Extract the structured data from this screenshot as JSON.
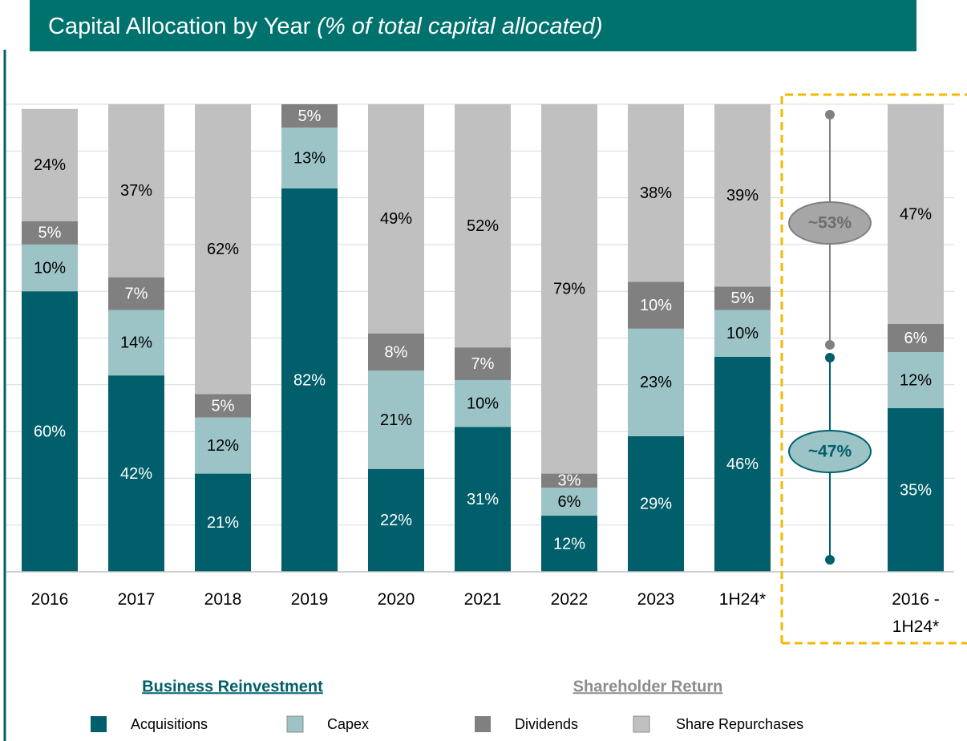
{
  "chart_data": {
    "type": "bar",
    "stacked": true,
    "title": "Capital Allocation by Year",
    "subtitle": "(% of total capital allocated)",
    "categories": [
      "2016",
      "2017",
      "2018",
      "2019",
      "2020",
      "2021",
      "2022",
      "2023",
      "1H24*",
      null,
      "2016 - 1H24*"
    ],
    "series": [
      {
        "name": "Acquisitions",
        "color": "#005f6b",
        "values": [
          60,
          42,
          21,
          82,
          22,
          31,
          12,
          29,
          46,
          null,
          35
        ],
        "value_labels": [
          "60%",
          "42%",
          "21%",
          "82%",
          "22%",
          "31%",
          "12%",
          "29%",
          "46%",
          null,
          "35%"
        ]
      },
      {
        "name": "Capex",
        "color": "#9cc3c6",
        "values": [
          10,
          14,
          12,
          13,
          21,
          10,
          6,
          23,
          10,
          null,
          12
        ],
        "value_labels": [
          "10%",
          "14%",
          "12%",
          "13%",
          "21%",
          "10%",
          "6%",
          "23%",
          "10%",
          null,
          "12%"
        ]
      },
      {
        "name": "Dividends",
        "color": "#808080",
        "values": [
          5,
          7,
          5,
          5,
          8,
          7,
          3,
          10,
          5,
          null,
          6
        ],
        "value_labels": [
          "5%",
          "7%",
          "5%",
          "5%",
          "8%",
          "7%",
          "3%",
          "10%",
          "5%",
          null,
          "6%"
        ]
      },
      {
        "name": "Share Repurchases",
        "color": "#c0c0c0",
        "values": [
          24,
          37,
          62,
          0,
          49,
          52,
          79,
          38,
          39,
          null,
          47
        ],
        "value_labels": [
          "24%",
          "37%",
          "62%",
          null,
          "49%",
          "52%",
          "79%",
          "38%",
          "39%",
          null,
          "47%"
        ]
      }
    ],
    "ylim": [
      0,
      100
    ],
    "yticks": [
      0,
      10,
      20,
      30,
      40,
      50,
      60,
      70,
      80,
      90,
      100
    ],
    "grid": true,
    "legend_groups": [
      "Business Reinvestment",
      "Shareholder Return"
    ],
    "annotations": [
      "~53%",
      "~47%"
    ]
  }
}
